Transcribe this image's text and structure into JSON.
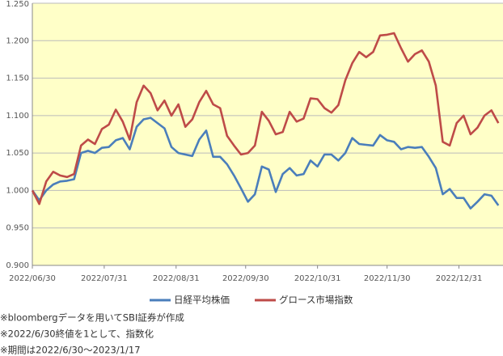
{
  "chart_data": {
    "type": "line",
    "x": [
      "2022/06/30",
      "2022/07/03",
      "2022/07/06",
      "2022/07/09",
      "2022/07/12",
      "2022/07/15",
      "2022/07/18",
      "2022/07/21",
      "2022/07/24",
      "2022/07/27",
      "2022/07/30",
      "2022/08/02",
      "2022/08/05",
      "2022/08/08",
      "2022/08/11",
      "2022/08/14",
      "2022/08/17",
      "2022/08/20",
      "2022/08/23",
      "2022/08/26",
      "2022/08/29",
      "2022/09/01",
      "2022/09/04",
      "2022/09/07",
      "2022/09/10",
      "2022/09/13",
      "2022/09/16",
      "2022/09/19",
      "2022/09/22",
      "2022/09/25",
      "2022/09/28",
      "2022/10/01",
      "2022/10/04",
      "2022/10/07",
      "2022/10/10",
      "2022/10/13",
      "2022/10/16",
      "2022/10/19",
      "2022/10/22",
      "2022/10/25",
      "2022/10/28",
      "2022/10/31",
      "2022/11/03",
      "2022/11/06",
      "2022/11/09",
      "2022/11/12",
      "2022/11/15",
      "2022/11/18",
      "2022/11/21",
      "2022/11/24",
      "2022/11/27",
      "2022/11/30",
      "2022/12/03",
      "2022/12/06",
      "2022/12/09",
      "2022/12/12",
      "2022/12/15",
      "2022/12/18",
      "2022/12/21",
      "2022/12/24",
      "2022/12/27",
      "2022/12/30",
      "2023/01/02",
      "2023/01/05",
      "2023/01/08",
      "2023/01/11",
      "2023/01/14",
      "2023/01/17"
    ],
    "series": [
      {
        "name": "日経平均株価",
        "color": "#4a7ebb",
        "values": [
          1.0,
          0.987,
          1.0,
          1.008,
          1.012,
          1.013,
          1.015,
          1.05,
          1.053,
          1.05,
          1.057,
          1.058,
          1.067,
          1.07,
          1.055,
          1.085,
          1.095,
          1.097,
          1.09,
          1.083,
          1.058,
          1.05,
          1.048,
          1.046,
          1.068,
          1.08,
          1.045,
          1.045,
          1.035,
          1.02,
          1.003,
          0.985,
          0.995,
          1.032,
          1.028,
          0.998,
          1.022,
          1.03,
          1.02,
          1.022,
          1.04,
          1.032,
          1.048,
          1.048,
          1.04,
          1.05,
          1.07,
          1.062,
          1.061,
          1.06,
          1.074,
          1.067,
          1.065,
          1.055,
          1.058,
          1.057,
          1.058,
          1.045,
          1.03,
          0.995,
          1.002,
          0.99,
          0.99,
          0.976,
          0.985,
          0.995,
          0.993,
          0.98
        ]
      },
      {
        "name": "グロース市場指数",
        "color": "#be4b48",
        "values": [
          1.0,
          0.982,
          1.012,
          1.025,
          1.02,
          1.018,
          1.022,
          1.06,
          1.068,
          1.062,
          1.082,
          1.088,
          1.108,
          1.092,
          1.068,
          1.118,
          1.14,
          1.13,
          1.107,
          1.12,
          1.1,
          1.115,
          1.085,
          1.095,
          1.118,
          1.133,
          1.115,
          1.11,
          1.073,
          1.06,
          1.048,
          1.05,
          1.06,
          1.105,
          1.093,
          1.075,
          1.078,
          1.105,
          1.092,
          1.096,
          1.123,
          1.122,
          1.11,
          1.104,
          1.114,
          1.147,
          1.17,
          1.185,
          1.178,
          1.185,
          1.207,
          1.208,
          1.21,
          1.19,
          1.172,
          1.182,
          1.187,
          1.172,
          1.14,
          1.065,
          1.06,
          1.09,
          1.1,
          1.075,
          1.084,
          1.1,
          1.107,
          1.09
        ]
      }
    ],
    "xlim": [
      "2022/06/30",
      "2023/01/19"
    ],
    "xticks": [
      "2022/06/30",
      "2022/07/31",
      "2022/08/31",
      "2022/09/30",
      "2022/10/31",
      "2022/11/30",
      "2022/12/31"
    ],
    "ylim": [
      0.9,
      1.25
    ],
    "yticks": [
      {
        "value": 0.9,
        "label": "0.900"
      },
      {
        "value": 0.95,
        "label": "0.950"
      },
      {
        "value": 1.0,
        "label": "1.000"
      },
      {
        "value": 1.05,
        "label": "1.050"
      },
      {
        "value": 1.1,
        "label": "1.100"
      },
      {
        "value": 1.15,
        "label": "1.150"
      },
      {
        "value": 1.2,
        "label": "1.200"
      },
      {
        "value": 1.25,
        "label": "1.250"
      }
    ],
    "grid": true,
    "notes": [
      "※bloombergデータを用いてSBI証券が作成",
      "※2022/6/30終値を1として、指数化",
      "※期間は2022/6/30～2023/1/17"
    ]
  }
}
